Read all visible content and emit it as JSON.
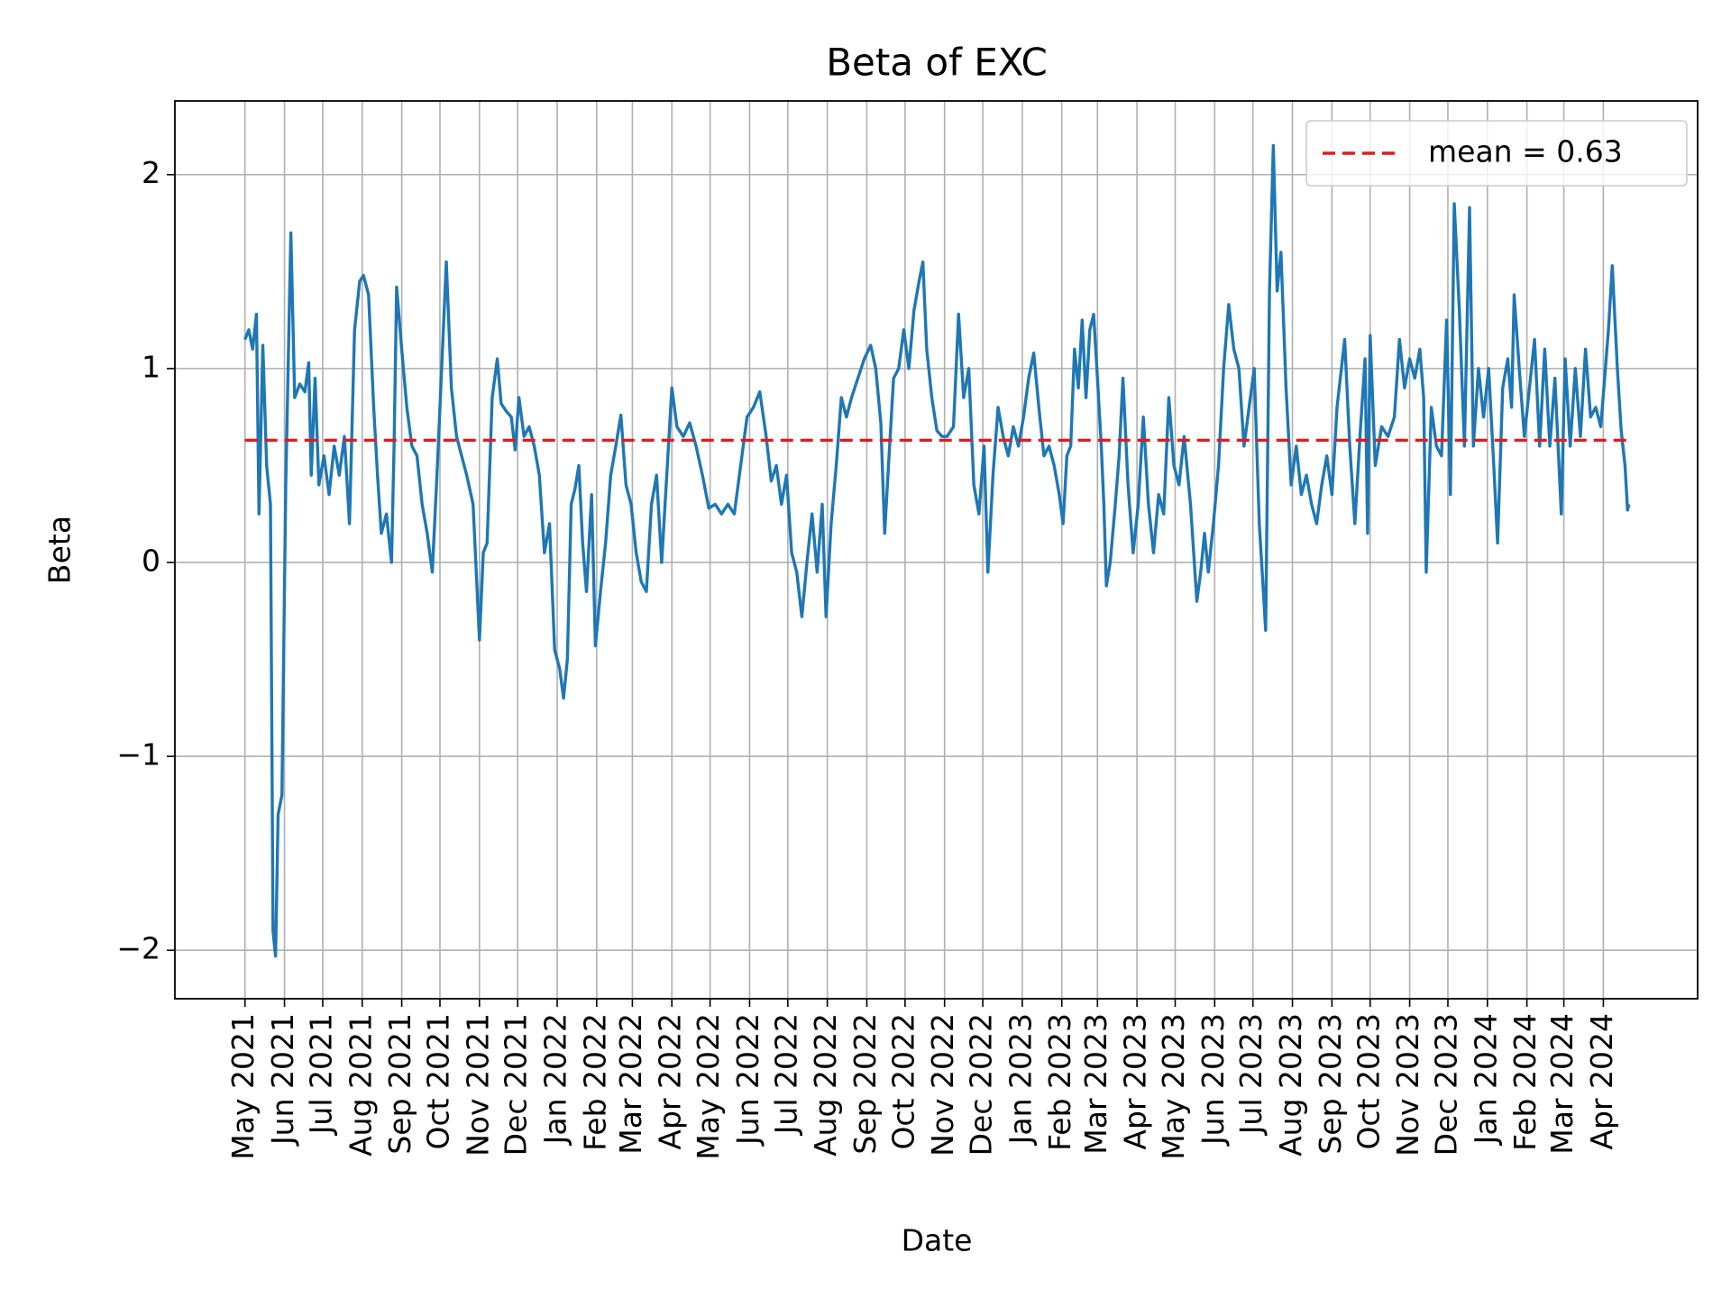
{
  "chart_data": {
    "type": "line",
    "title": "Beta of EXC",
    "x_label": "Date",
    "y_label": "Beta",
    "x": [
      "2021-05-01",
      "2021-05-04",
      "2021-05-07",
      "2021-05-10",
      "2021-05-12",
      "2021-05-15",
      "2021-05-18",
      "2021-05-21",
      "2021-05-23",
      "2021-05-25",
      "2021-05-27",
      "2021-05-30",
      "2021-06-02",
      "2021-06-06",
      "2021-06-09",
      "2021-06-13",
      "2021-06-17",
      "2021-06-20",
      "2021-06-22",
      "2021-06-25",
      "2021-06-28",
      "2021-07-02",
      "2021-07-06",
      "2021-07-10",
      "2021-07-14",
      "2021-07-18",
      "2021-07-22",
      "2021-07-26",
      "2021-07-30",
      "2021-08-02",
      "2021-08-06",
      "2021-08-10",
      "2021-08-13",
      "2021-08-16",
      "2021-08-20",
      "2021-08-24",
      "2021-08-26",
      "2021-08-28",
      "2021-09-01",
      "2021-09-05",
      "2021-09-09",
      "2021-09-13",
      "2021-09-17",
      "2021-09-21",
      "2021-09-25",
      "2021-09-29",
      "2021-10-03",
      "2021-10-06",
      "2021-10-10",
      "2021-10-14",
      "2021-10-18",
      "2021-10-22",
      "2021-10-27",
      "2021-11-01",
      "2021-11-04",
      "2021-11-07",
      "2021-11-11",
      "2021-11-15",
      "2021-11-18",
      "2021-11-22",
      "2021-11-26",
      "2021-11-29",
      "2021-12-02",
      "2021-12-06",
      "2021-12-10",
      "2021-12-14",
      "2021-12-18",
      "2021-12-22",
      "2021-12-26",
      "2021-12-30",
      "2022-01-03",
      "2022-01-06",
      "2022-01-09",
      "2022-01-12",
      "2022-01-15",
      "2022-01-18",
      "2022-01-21",
      "2022-01-24",
      "2022-01-28",
      "2022-01-31",
      "2022-02-04",
      "2022-02-08",
      "2022-02-12",
      "2022-02-16",
      "2022-02-20",
      "2022-02-24",
      "2022-02-28",
      "2022-03-04",
      "2022-03-08",
      "2022-03-12",
      "2022-03-16",
      "2022-03-20",
      "2022-03-24",
      "2022-03-28",
      "2022-04-01",
      "2022-04-05",
      "2022-04-10",
      "2022-04-15",
      "2022-04-20",
      "2022-04-25",
      "2022-04-30",
      "2022-05-05",
      "2022-05-10",
      "2022-05-15",
      "2022-05-20",
      "2022-05-25",
      "2022-05-30",
      "2022-06-04",
      "2022-06-09",
      "2022-06-14",
      "2022-06-18",
      "2022-06-22",
      "2022-06-26",
      "2022-06-30",
      "2022-07-04",
      "2022-07-08",
      "2022-07-12",
      "2022-07-16",
      "2022-07-20",
      "2022-07-24",
      "2022-07-28",
      "2022-07-31",
      "2022-08-04",
      "2022-08-08",
      "2022-08-12",
      "2022-08-16",
      "2022-08-20",
      "2022-08-25",
      "2022-08-30",
      "2022-09-04",
      "2022-09-08",
      "2022-09-12",
      "2022-09-15",
      "2022-09-18",
      "2022-09-22",
      "2022-09-26",
      "2022-09-30",
      "2022-10-04",
      "2022-10-08",
      "2022-10-12",
      "2022-10-15",
      "2022-10-18",
      "2022-10-22",
      "2022-10-26",
      "2022-10-30",
      "2022-11-03",
      "2022-11-08",
      "2022-11-12",
      "2022-11-16",
      "2022-11-20",
      "2022-11-24",
      "2022-11-28",
      "2022-12-02",
      "2022-12-05",
      "2022-12-09",
      "2022-12-13",
      "2022-12-17",
      "2022-12-21",
      "2022-12-25",
      "2022-12-29",
      "2023-01-02",
      "2023-01-06",
      "2023-01-10",
      "2023-01-14",
      "2023-01-18",
      "2023-01-22",
      "2023-01-26",
      "2023-01-30",
      "2023-02-02",
      "2023-02-05",
      "2023-02-08",
      "2023-02-11",
      "2023-02-14",
      "2023-02-17",
      "2023-02-20",
      "2023-02-23",
      "2023-02-26",
      "2023-03-01",
      "2023-03-04",
      "2023-03-06",
      "2023-03-08",
      "2023-03-11",
      "2023-03-15",
      "2023-03-18",
      "2023-03-21",
      "2023-03-25",
      "2023-03-29",
      "2023-04-02",
      "2023-04-06",
      "2023-04-10",
      "2023-04-14",
      "2023-04-18",
      "2023-04-22",
      "2023-04-26",
      "2023-04-30",
      "2023-05-04",
      "2023-05-08",
      "2023-05-13",
      "2023-05-18",
      "2023-05-21",
      "2023-05-24",
      "2023-05-27",
      "2023-05-31",
      "2023-06-04",
      "2023-06-08",
      "2023-06-12",
      "2023-06-16",
      "2023-06-20",
      "2023-06-24",
      "2023-06-28",
      "2023-07-02",
      "2023-07-06",
      "2023-07-11",
      "2023-07-14",
      "2023-07-17",
      "2023-07-20",
      "2023-07-23",
      "2023-07-27",
      "2023-07-31",
      "2023-08-04",
      "2023-08-08",
      "2023-08-12",
      "2023-08-16",
      "2023-08-20",
      "2023-08-24",
      "2023-08-28",
      "2023-09-01",
      "2023-09-05",
      "2023-09-11",
      "2023-09-15",
      "2023-09-19",
      "2023-09-23",
      "2023-09-27",
      "2023-09-29",
      "2023-10-01",
      "2023-10-05",
      "2023-10-10",
      "2023-10-15",
      "2023-10-20",
      "2023-10-24",
      "2023-10-28",
      "2023-11-01",
      "2023-11-05",
      "2023-11-09",
      "2023-11-12",
      "2023-11-14",
      "2023-11-18",
      "2023-11-22",
      "2023-11-26",
      "2023-11-30",
      "2023-12-03",
      "2023-12-06",
      "2023-12-10",
      "2023-12-14",
      "2023-12-18",
      "2023-12-21",
      "2023-12-25",
      "2023-12-29",
      "2024-01-02",
      "2024-01-06",
      "2024-01-09",
      "2024-01-13",
      "2024-01-17",
      "2024-01-20",
      "2024-01-22",
      "2024-01-26",
      "2024-01-30",
      "2024-02-03",
      "2024-02-07",
      "2024-02-11",
      "2024-02-15",
      "2024-02-19",
      "2024-02-23",
      "2024-02-28",
      "2024-03-02",
      "2024-03-06",
      "2024-03-10",
      "2024-03-14",
      "2024-03-18",
      "2024-03-22",
      "2024-03-26",
      "2024-03-30",
      "2024-04-02",
      "2024-04-05",
      "2024-04-08",
      "2024-04-12",
      "2024-04-15",
      "2024-04-18",
      "2024-04-20",
      "2024-04-21"
    ],
    "series": [
      {
        "name": "Beta",
        "color": "#1f77b4",
        "values": [
          1.15,
          1.2,
          1.1,
          1.28,
          0.25,
          1.12,
          0.5,
          0.3,
          -1.9,
          -2.03,
          -1.3,
          -1.2,
          0.4,
          1.7,
          0.85,
          0.92,
          0.88,
          1.03,
          0.45,
          0.95,
          0.4,
          0.55,
          0.35,
          0.6,
          0.45,
          0.65,
          0.2,
          1.2,
          1.45,
          1.48,
          1.38,
          0.8,
          0.45,
          0.15,
          0.25,
          0.0,
          0.6,
          1.42,
          1.1,
          0.8,
          0.6,
          0.55,
          0.3,
          0.15,
          -0.05,
          0.5,
          1.1,
          1.55,
          0.9,
          0.65,
          0.55,
          0.45,
          0.3,
          -0.4,
          0.05,
          0.1,
          0.85,
          1.05,
          0.82,
          0.78,
          0.75,
          0.58,
          0.85,
          0.65,
          0.7,
          0.6,
          0.45,
          0.05,
          0.2,
          -0.45,
          -0.55,
          -0.7,
          -0.5,
          0.3,
          0.38,
          0.5,
          0.1,
          -0.15,
          0.35,
          -0.43,
          -0.15,
          0.1,
          0.45,
          0.6,
          0.76,
          0.4,
          0.3,
          0.05,
          -0.1,
          -0.15,
          0.3,
          0.45,
          0.0,
          0.45,
          0.9,
          0.7,
          0.65,
          0.72,
          0.6,
          0.45,
          0.28,
          0.3,
          0.25,
          0.3,
          0.25,
          0.5,
          0.75,
          0.8,
          0.88,
          0.65,
          0.42,
          0.5,
          0.3,
          0.45,
          0.05,
          -0.05,
          -0.28,
          0.0,
          0.25,
          -0.05,
          0.3,
          -0.28,
          0.2,
          0.5,
          0.85,
          0.75,
          0.85,
          0.95,
          1.05,
          1.12,
          1.0,
          0.72,
          0.15,
          0.5,
          0.95,
          1.0,
          1.2,
          1.0,
          1.3,
          1.45,
          1.55,
          1.1,
          0.85,
          0.68,
          0.65,
          0.65,
          0.7,
          1.28,
          0.85,
          1.0,
          0.4,
          0.25,
          0.6,
          -0.05,
          0.45,
          0.8,
          0.65,
          0.55,
          0.7,
          0.6,
          0.75,
          0.95,
          1.08,
          0.8,
          0.55,
          0.6,
          0.5,
          0.35,
          0.2,
          0.55,
          0.6,
          1.1,
          0.9,
          1.25,
          0.85,
          1.2,
          1.28,
          0.95,
          0.6,
          0.3,
          -0.12,
          0.0,
          0.3,
          0.55,
          0.95,
          0.4,
          0.05,
          0.3,
          0.75,
          0.3,
          0.05,
          0.35,
          0.25,
          0.85,
          0.5,
          0.4,
          0.65,
          0.3,
          -0.2,
          -0.05,
          0.15,
          -0.05,
          0.2,
          0.5,
          1.0,
          1.33,
          1.1,
          1.0,
          0.6,
          0.8,
          1.0,
          0.2,
          -0.35,
          1.4,
          2.15,
          1.4,
          1.6,
          0.9,
          0.4,
          0.6,
          0.35,
          0.45,
          0.3,
          0.2,
          0.4,
          0.55,
          0.35,
          0.8,
          1.15,
          0.6,
          0.2,
          0.65,
          1.05,
          0.15,
          1.17,
          0.5,
          0.7,
          0.65,
          0.75,
          1.15,
          0.9,
          1.05,
          0.95,
          1.1,
          0.85,
          -0.05,
          0.8,
          0.6,
          0.55,
          1.25,
          0.35,
          1.85,
          1.3,
          0.6,
          1.83,
          0.6,
          1.0,
          0.75,
          1.0,
          0.5,
          0.1,
          0.9,
          1.05,
          0.8,
          1.38,
          1.0,
          0.65,
          0.9,
          1.15,
          0.6,
          1.1,
          0.6,
          0.95,
          0.25,
          1.05,
          0.6,
          1.0,
          0.65,
          1.1,
          0.75,
          0.8,
          0.7,
          0.95,
          1.2,
          1.53,
          1.0,
          0.68,
          0.5,
          0.27,
          0.3
        ]
      }
    ],
    "mean_line": {
      "name": "mean = 0.63",
      "value": 0.63,
      "color": "#e41a1c"
    },
    "legend": "upper right",
    "grid": true,
    "xlim": [
      "2021-03-07",
      "2024-06-14"
    ],
    "xticks": [
      {
        "value": "2021-05",
        "label": "May 2021"
      },
      {
        "value": "2021-06",
        "label": "Jun 2021"
      },
      {
        "value": "2021-07",
        "label": "Jul 2021"
      },
      {
        "value": "2021-08",
        "label": "Aug 2021"
      },
      {
        "value": "2021-09",
        "label": "Sep 2021"
      },
      {
        "value": "2021-10",
        "label": "Oct 2021"
      },
      {
        "value": "2021-11",
        "label": "Nov 2021"
      },
      {
        "value": "2021-12",
        "label": "Dec 2021"
      },
      {
        "value": "2022-01",
        "label": "Jan 2022"
      },
      {
        "value": "2022-02",
        "label": "Feb 2022"
      },
      {
        "value": "2022-03",
        "label": "Mar 2022"
      },
      {
        "value": "2022-04",
        "label": "Apr 2022"
      },
      {
        "value": "2022-05",
        "label": "May 2022"
      },
      {
        "value": "2022-06",
        "label": "Jun 2022"
      },
      {
        "value": "2022-07",
        "label": "Jul 2022"
      },
      {
        "value": "2022-08",
        "label": "Aug 2022"
      },
      {
        "value": "2022-09",
        "label": "Sep 2022"
      },
      {
        "value": "2022-10",
        "label": "Oct 2022"
      },
      {
        "value": "2022-11",
        "label": "Nov 2022"
      },
      {
        "value": "2022-12",
        "label": "Dec 2022"
      },
      {
        "value": "2023-01",
        "label": "Jan 2023"
      },
      {
        "value": "2023-02",
        "label": "Feb 2023"
      },
      {
        "value": "2023-03",
        "label": "Mar 2023"
      },
      {
        "value": "2023-04",
        "label": "Apr 2023"
      },
      {
        "value": "2023-05",
        "label": "May 2023"
      },
      {
        "value": "2023-06",
        "label": "Jun 2023"
      },
      {
        "value": "2023-07",
        "label": "Jul 2023"
      },
      {
        "value": "2023-08",
        "label": "Aug 2023"
      },
      {
        "value": "2023-09",
        "label": "Sep 2023"
      },
      {
        "value": "2023-10",
        "label": "Oct 2023"
      },
      {
        "value": "2023-11",
        "label": "Nov 2023"
      },
      {
        "value": "2023-12",
        "label": "Dec 2023"
      },
      {
        "value": "2024-01",
        "label": "Jan 2024"
      },
      {
        "value": "2024-02",
        "label": "Feb 2024"
      },
      {
        "value": "2024-03",
        "label": "Mar 2024"
      },
      {
        "value": "2024-04",
        "label": "Apr 2024"
      }
    ],
    "ylim": [
      -2.25,
      2.38
    ],
    "yticks": [
      {
        "value": -2,
        "label": "−2"
      },
      {
        "value": -1,
        "label": "−1"
      },
      0,
      1,
      2
    ]
  }
}
